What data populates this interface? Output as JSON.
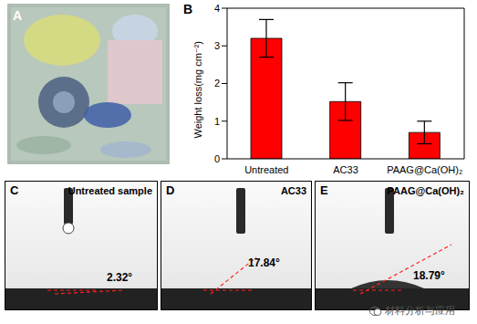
{
  "panel_labels": [
    "A",
    "B",
    "C",
    "D",
    "E"
  ],
  "chart_data": {
    "type": "bar",
    "categories": [
      "Untreated",
      "AC33",
      "PAAG@Ca(OH)₂"
    ],
    "values": [
      3.2,
      1.52,
      0.7
    ],
    "errors": [
      0.5,
      0.5,
      0.3
    ],
    "color": "#ff0000",
    "ylabel": "Weight loss(mg cm⁻²)",
    "ylim": [
      0,
      4
    ],
    "yticks": [
      0,
      1,
      2,
      3,
      4
    ],
    "grid": false
  },
  "contact_angle_panels": [
    {
      "title": "Untreated sample",
      "angle": "2.32°"
    },
    {
      "title": "AC33",
      "angle": "17.84°"
    },
    {
      "title": "PAAG@Ca(OH)₂",
      "angle": "18.79°"
    }
  ],
  "watermark": "材料分析与应用"
}
